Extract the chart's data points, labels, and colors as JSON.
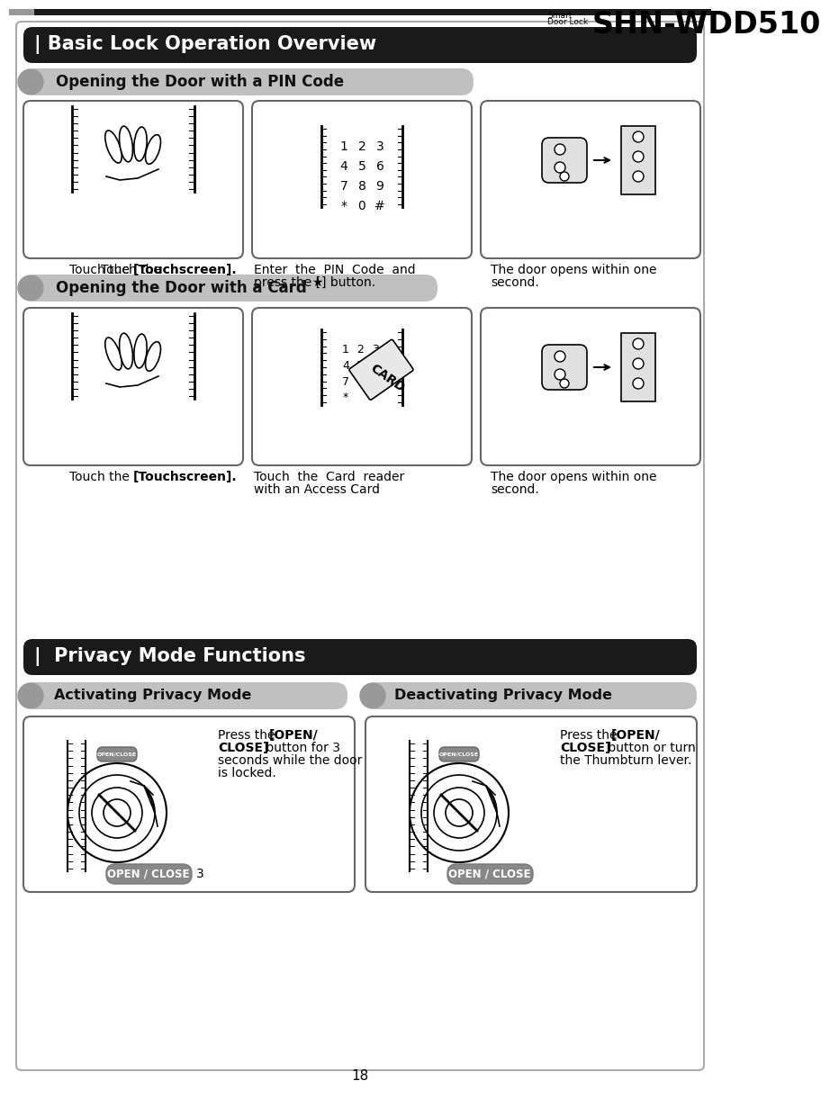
{
  "page_title_small": "Smart\nDoor Lock",
  "page_title_large": "SHN-WDD510",
  "section1_title": "| Basic Lock Operation Overview",
  "sub1_title": "Opening the Door with a PIN Code",
  "sub2_title": "Opening the Door with a Card",
  "section2_title": "|  Privacy Mode Functions",
  "sub3_title": "Activating Privacy Mode",
  "sub4_title": "Deactivating Privacy Mode",
  "open_close_label": "OPEN / CLOSE",
  "page_number": "18",
  "bg_color": "#ffffff",
  "section_bg": "#1a1a1a",
  "section_text_color": "#ffffff",
  "subsection_bg": "#b8b8b8",
  "box_border_color": "#666666",
  "open_close_bg": "#888888"
}
